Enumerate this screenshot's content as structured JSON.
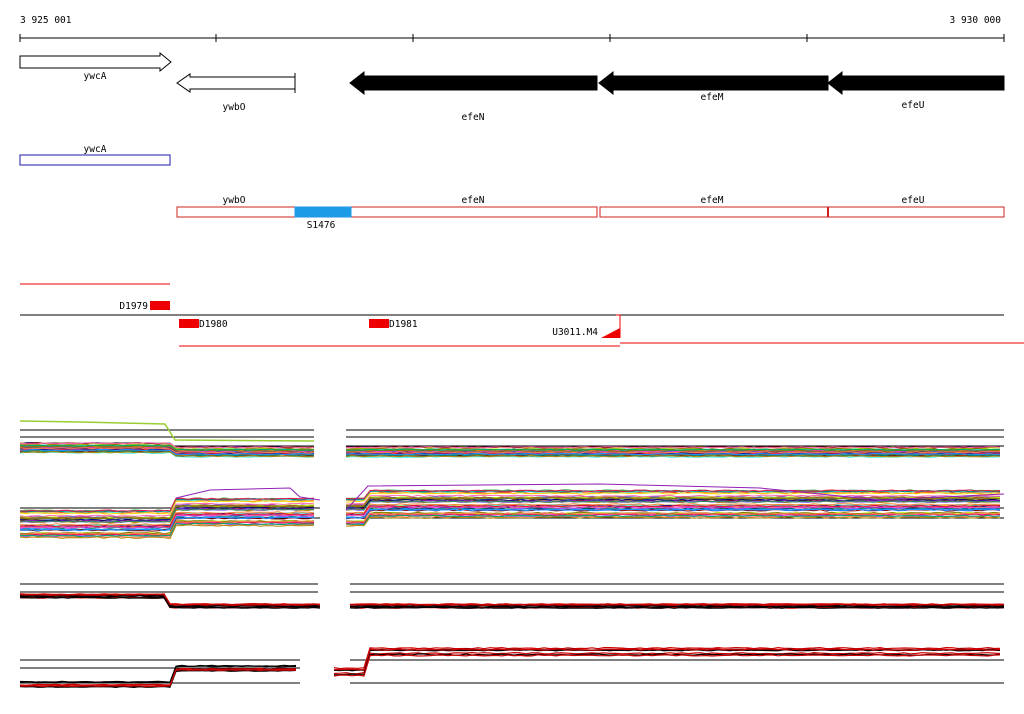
{
  "ruler": {
    "start_label": "3 925 001",
    "end_label": "3 930 000"
  },
  "genes": {
    "ywcA": "ywcA",
    "ywbO": "ywbO",
    "efeN": "efeN",
    "efeM": "efeM",
    "efeU": "efeU"
  },
  "annotations": {
    "s_region": "S1476",
    "d1979": "D1979",
    "d1980": "D1980",
    "d1981": "D1981",
    "u3011": "U3011.M4"
  },
  "colors": {
    "gene_arrow_fill": "#000000",
    "ywcA_box": "#1a1aaa",
    "transcript_box": "#cc2222",
    "s_region_fill": "#1e9be6",
    "marker_red": "#ee0000"
  },
  "tracks": {
    "palette": [
      "#e6194b",
      "#3cb44b",
      "#4363d8",
      "#f58231",
      "#911eb4",
      "#46f0f0",
      "#f032e6",
      "#bcf60c",
      "#008080",
      "#9a6324",
      "#800000",
      "#808000",
      "#000075",
      "#ff7f50",
      "#00a86b",
      "#ff69b4",
      "#1e90ff",
      "#b8860b",
      "#7b68ee",
      "#2e8b57",
      "#dc143c",
      "#ffd700"
    ],
    "bottom_colors": [
      "#000000",
      "#cc0000"
    ]
  }
}
